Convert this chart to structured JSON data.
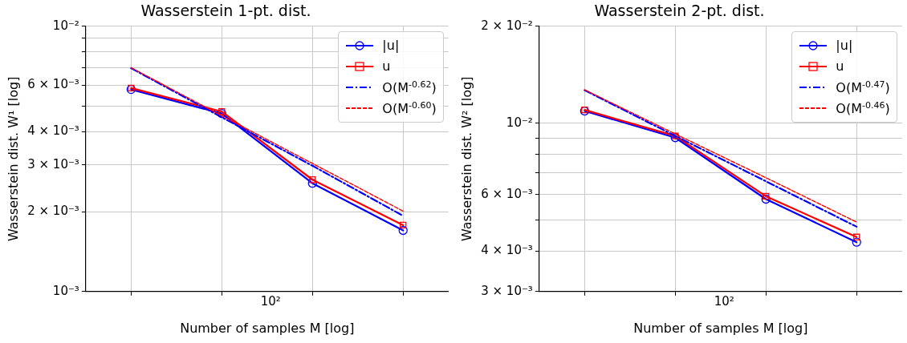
{
  "chart_data": [
    {
      "type": "line",
      "title": "Wasserstein 1-pt. dist.",
      "xlabel": "Number of samples M [log]",
      "ylabel": "Wasserstein dist. W¹ [log]",
      "log": "y",
      "grid": true,
      "legend": "top right",
      "annotations": [
        "10²"
      ],
      "ylim": [
        0.001,
        0.01
      ],
      "yticks": [
        {
          "value": 0.001,
          "label": "10⁻³"
        },
        {
          "value": 0.002,
          "label": "2 × 10⁻³"
        },
        {
          "value": 0.003,
          "label": "3 × 10⁻³"
        },
        {
          "value": 0.004,
          "label": "4 × 10⁻³"
        },
        {
          "value": 0.005,
          "label": null
        },
        {
          "value": 0.006,
          "label": "6 × 10⁻³"
        },
        {
          "value": 0.007,
          "label": null
        },
        {
          "value": 0.008,
          "label": null
        },
        {
          "value": 0.009,
          "label": null
        },
        {
          "value": 0.01,
          "label": "10⁻²"
        }
      ],
      "categories": [
        null,
        null,
        null,
        null
      ],
      "series": [
        {
          "name": "|u|",
          "color": "#0000ff",
          "marker": "circle",
          "line_style": "solid",
          "values": [
            0.00578,
            0.00469,
            0.00256,
            0.0017
          ]
        },
        {
          "name": "u",
          "color": "#ff0000",
          "marker": "square",
          "line_style": "solid",
          "values": [
            0.00585,
            0.00477,
            0.00264,
            0.00178
          ]
        },
        {
          "name": "O(M$^{-0.62}$)",
          "color": "#0000ff",
          "marker": "none",
          "line_style": "dashdot",
          "values": [
            0.00695,
            0.00454,
            0.00298,
            0.00193
          ]
        },
        {
          "name": "O(M$^{-0.60}$)",
          "color": "#ff0000",
          "marker": "none",
          "line_style": "dashed",
          "values": [
            0.00698,
            0.0046,
            0.00304,
            0.00201
          ]
        }
      ]
    },
    {
      "type": "line",
      "title": "Wasserstein 2-pt. dist.",
      "xlabel": "Number of samples M [log]",
      "ylabel": "Wasserstein dist. W² [log]",
      "log": "y",
      "grid": true,
      "legend": "top right",
      "annotations": [
        "10²"
      ],
      "ylim": [
        0.003,
        0.02
      ],
      "yticks": [
        {
          "value": 0.003,
          "label": "3 × 10⁻³"
        },
        {
          "value": 0.004,
          "label": "4 × 10⁻³"
        },
        {
          "value": 0.005,
          "label": null
        },
        {
          "value": 0.006,
          "label": "6 × 10⁻³"
        },
        {
          "value": 0.007,
          "label": null
        },
        {
          "value": 0.008,
          "label": null
        },
        {
          "value": 0.009,
          "label": null
        },
        {
          "value": 0.01,
          "label": "10⁻²"
        },
        {
          "value": 0.02,
          "label": "2 × 10⁻²"
        }
      ],
      "categories": [
        null,
        null,
        null,
        null
      ],
      "series": [
        {
          "name": "|u|",
          "color": "#0000ff",
          "marker": "circle",
          "line_style": "solid",
          "values": [
            0.01091,
            0.00902,
            0.00581,
            0.00427
          ]
        },
        {
          "name": "u",
          "color": "#ff0000",
          "marker": "square",
          "line_style": "solid",
          "values": [
            0.011,
            0.00913,
            0.00593,
            0.00443
          ]
        },
        {
          "name": "O(M$^{-0.47}$)",
          "color": "#0000ff",
          "marker": "none",
          "line_style": "dashdot",
          "values": [
            0.01266,
            0.00913,
            0.0066,
            0.00477
          ]
        },
        {
          "name": "O(M$^{-0.46}$)",
          "color": "#ff0000",
          "marker": "none",
          "line_style": "dashed",
          "values": [
            0.0127,
            0.00926,
            0.00677,
            0.00493
          ]
        }
      ]
    }
  ]
}
